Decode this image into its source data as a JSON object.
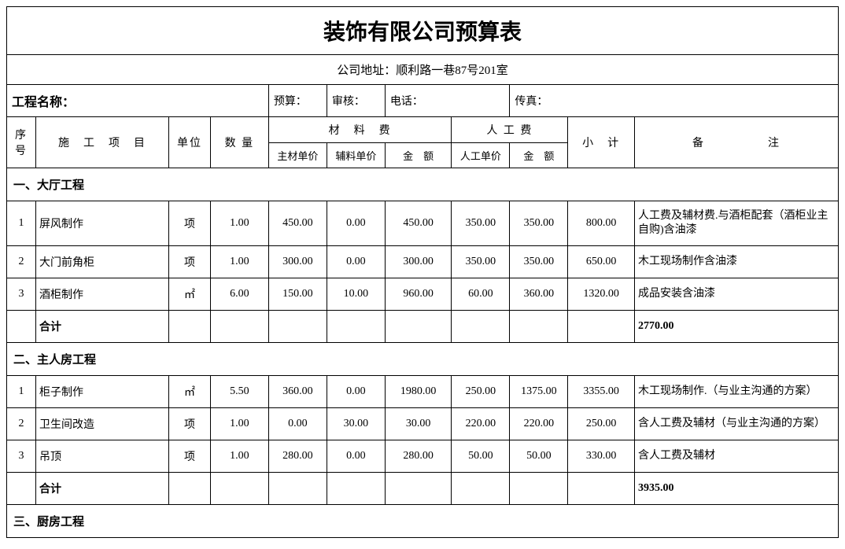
{
  "title": "装饰有限公司预算表",
  "address": "公司地址：顺利路一巷87号201室",
  "meta": {
    "project_label": "工程名称：",
    "budget_label": "预算：",
    "review_label": "审核：",
    "phone_label": "电话：",
    "fax_label": "传真："
  },
  "header": {
    "seq": "序号",
    "item": "施　工　项　目",
    "unit": "单位",
    "qty": "数 量",
    "material": "材　料　费",
    "labor": "人 工 费",
    "subtotal": "小　计",
    "remark": "备　　　　　注",
    "mat_main": "主材单价",
    "mat_aux": "辅料单价",
    "mat_amt": "金　额",
    "lab_unit": "人工单价",
    "lab_amt": "金　额"
  },
  "sections": [
    {
      "title": "一、大厅工程",
      "rows": [
        {
          "no": "1",
          "name": "屏风制作",
          "unit": "项",
          "qty": "1.00",
          "mmain": "450.00",
          "maux": "0.00",
          "mamt": "450.00",
          "lunit": "350.00",
          "lamt": "350.00",
          "sub": "800.00",
          "remark": "人工费及辅材费.与酒柜配套（酒柜业主自购)含油漆"
        },
        {
          "no": "2",
          "name": "大门前角柜",
          "unit": "项",
          "qty": "1.00",
          "mmain": "300.00",
          "maux": "0.00",
          "mamt": "300.00",
          "lunit": "350.00",
          "lamt": "350.00",
          "sub": "650.00",
          "remark": "木工现场制作含油漆"
        },
        {
          "no": "3",
          "name": "酒柜制作",
          "unit": "㎡",
          "qty": "6.00",
          "mmain": "150.00",
          "maux": "10.00",
          "mamt": "960.00",
          "lunit": "60.00",
          "lamt": "360.00",
          "sub": "1320.00",
          "remark": "成品安装含油漆"
        }
      ],
      "subtotal_label": "合计",
      "subtotal_value": "2770.00"
    },
    {
      "title": "二、主人房工程",
      "rows": [
        {
          "no": "1",
          "name": "柜子制作",
          "unit": "㎡",
          "qty": "5.50",
          "mmain": "360.00",
          "maux": "0.00",
          "mamt": "1980.00",
          "lunit": "250.00",
          "lamt": "1375.00",
          "sub": "3355.00",
          "remark": "木工现场制作.（与业主沟通的方案）"
        },
        {
          "no": "2",
          "name": "卫生间改造",
          "unit": "项",
          "qty": "1.00",
          "mmain": "0.00",
          "maux": "30.00",
          "mamt": "30.00",
          "lunit": "220.00",
          "lamt": "220.00",
          "sub": "250.00",
          "remark": "含人工费及辅材（与业主沟通的方案）"
        },
        {
          "no": "3",
          "name": "吊顶",
          "unit": "项",
          "qty": "1.00",
          "mmain": "280.00",
          "maux": "0.00",
          "mamt": "280.00",
          "lunit": "50.00",
          "lamt": "50.00",
          "sub": "330.00",
          "remark": "含人工费及辅材"
        }
      ],
      "subtotal_label": "合计",
      "subtotal_value": "3935.00"
    },
    {
      "title": "三、厨房工程",
      "rows": [],
      "subtotal_label": "",
      "subtotal_value": ""
    }
  ],
  "layout": {
    "col_widths_pct": [
      3.5,
      16,
      5,
      7,
      7,
      7,
      8,
      7,
      7,
      8,
      24.5
    ],
    "border_color": "#000000",
    "background_color": "#ffffff",
    "title_fontsize": 28
  }
}
